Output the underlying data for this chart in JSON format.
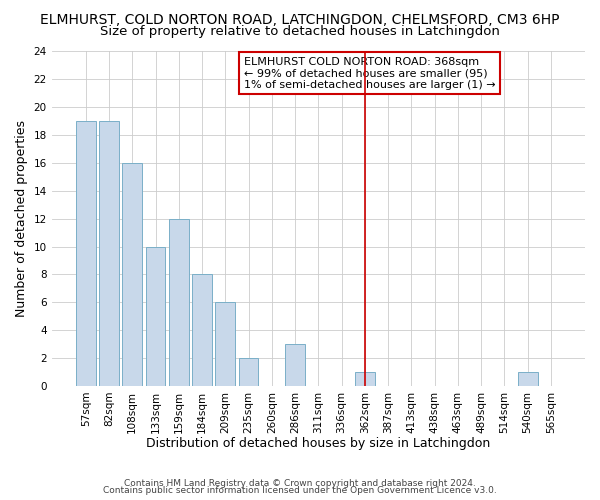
{
  "title": "ELMHURST, COLD NORTON ROAD, LATCHINGDON, CHELMSFORD, CM3 6HP",
  "subtitle": "Size of property relative to detached houses in Latchingdon",
  "xlabel": "Distribution of detached houses by size in Latchingdon",
  "ylabel": "Number of detached properties",
  "bin_labels": [
    "57sqm",
    "82sqm",
    "108sqm",
    "133sqm",
    "159sqm",
    "184sqm",
    "209sqm",
    "235sqm",
    "260sqm",
    "286sqm",
    "311sqm",
    "336sqm",
    "362sqm",
    "387sqm",
    "413sqm",
    "438sqm",
    "463sqm",
    "489sqm",
    "514sqm",
    "540sqm",
    "565sqm"
  ],
  "bar_heights": [
    19,
    19,
    16,
    10,
    12,
    8,
    6,
    2,
    0,
    3,
    0,
    0,
    1,
    0,
    0,
    0,
    0,
    0,
    0,
    1,
    0
  ],
  "bar_color": "#c8d8ea",
  "bar_edge_color": "#7aafc8",
  "vline_x_index": 12,
  "vline_color": "#cc0000",
  "ylim": [
    0,
    24
  ],
  "yticks": [
    0,
    2,
    4,
    6,
    8,
    10,
    12,
    14,
    16,
    18,
    20,
    22,
    24
  ],
  "annotation_title": "ELMHURST COLD NORTON ROAD: 368sqm",
  "annotation_line1": "← 99% of detached houses are smaller (95)",
  "annotation_line2": "1% of semi-detached houses are larger (1) →",
  "annotation_box_color": "#ffffff",
  "annotation_border_color": "#cc0000",
  "footer_line1": "Contains HM Land Registry data © Crown copyright and database right 2024.",
  "footer_line2": "Contains public sector information licensed under the Open Government Licence v3.0.",
  "background_color": "#ffffff",
  "grid_color": "#cccccc",
  "title_fontsize": 10,
  "subtitle_fontsize": 9.5,
  "axis_label_fontsize": 9,
  "tick_fontsize": 7.5,
  "footer_fontsize": 6.5,
  "annot_fontsize": 8
}
